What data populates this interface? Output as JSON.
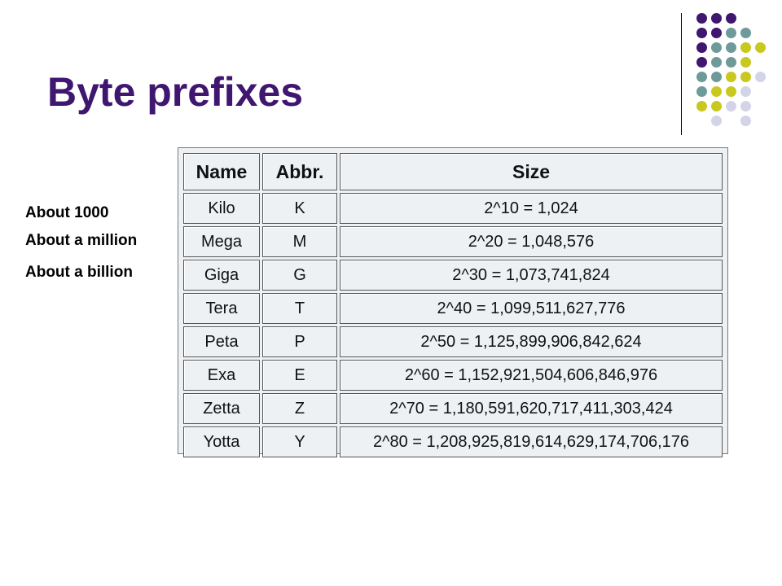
{
  "slide": {
    "title": "Byte prefixes"
  },
  "notes": [
    "About 1000",
    "About a million",
    "About a billion"
  ],
  "table": {
    "headers": {
      "name": "Name",
      "abbr": "Abbr.",
      "size": "Size"
    },
    "rows": [
      {
        "name": "Kilo",
        "abbr": "K",
        "size": "2^10 = 1,024"
      },
      {
        "name": "Mega",
        "abbr": "M",
        "size": "2^20 = 1,048,576"
      },
      {
        "name": "Giga",
        "abbr": "G",
        "size": "2^30 = 1,073,741,824"
      },
      {
        "name": "Tera",
        "abbr": "T",
        "size": "2^40 = 1,099,511,627,776"
      },
      {
        "name": "Peta",
        "abbr": "P",
        "size": "2^50 = 1,125,899,906,842,624"
      },
      {
        "name": "Exa",
        "abbr": "E",
        "size": "2^60 = 1,152,921,504,606,846,976"
      },
      {
        "name": "Zetta",
        "abbr": "Z",
        "size": "2^70 = 1,180,591,620,717,411,303,424"
      },
      {
        "name": "Yotta",
        "abbr": "Y",
        "size": "2^80 = 1,208,925,819,614,629,174,706,176"
      }
    ]
  },
  "theme": {
    "title_color": "#3f1670",
    "dot_colors": {
      "purple": "#3f1670",
      "teal": "#6f9a9a",
      "olive": "#c8c81e",
      "lavender": "#d4d4e8"
    }
  }
}
